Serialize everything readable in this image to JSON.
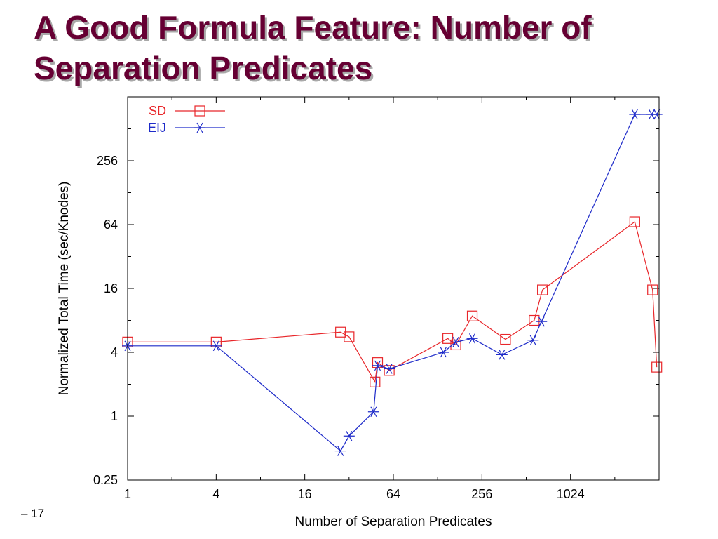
{
  "slide": {
    "title_line1": "A Good Formula Feature: Number of",
    "title_line2": "Separation Predicates",
    "page_number": "– 17"
  },
  "chart_data": {
    "type": "line",
    "x_scale": "log2",
    "y_scale": "log2",
    "xlim": [
      1,
      4096
    ],
    "ylim": [
      0.25,
      1024
    ],
    "xlabel": "Number of Separation Predicates",
    "ylabel": "Normalized Total Time (sec/Knodes)",
    "x_ticks": [
      {
        "value": 1,
        "label": "1"
      },
      {
        "value": 4,
        "label": "4"
      },
      {
        "value": 16,
        "label": "16"
      },
      {
        "value": 64,
        "label": "64"
      },
      {
        "value": 256,
        "label": "256"
      },
      {
        "value": 1024,
        "label": "1024"
      }
    ],
    "y_ticks": [
      {
        "value": 0.25,
        "label": "0.25"
      },
      {
        "value": 1,
        "label": "1"
      },
      {
        "value": 4,
        "label": "4"
      },
      {
        "value": 16,
        "label": "16"
      },
      {
        "value": 64,
        "label": "64"
      },
      {
        "value": 256,
        "label": "256"
      }
    ],
    "legend_position": "top-left",
    "series": [
      {
        "name": "SD",
        "color": "#e8262a",
        "marker": "square",
        "points": [
          [
            1,
            5
          ],
          [
            4,
            5
          ],
          [
            28,
            6.2
          ],
          [
            32,
            5.6
          ],
          [
            48,
            2.1
          ],
          [
            50,
            3.2
          ],
          [
            60,
            2.7
          ],
          [
            150,
            5.4
          ],
          [
            170,
            4.7
          ],
          [
            220,
            8.8
          ],
          [
            370,
            5.3
          ],
          [
            580,
            8
          ],
          [
            660,
            15.5
          ],
          [
            2800,
            68
          ],
          [
            3700,
            15.5
          ],
          [
            3950,
            2.9
          ]
        ]
      },
      {
        "name": "EIJ",
        "color": "#1e2bc9",
        "marker": "star",
        "points": [
          [
            1,
            4.6
          ],
          [
            4,
            4.6
          ],
          [
            28,
            0.47
          ],
          [
            32,
            0.65
          ],
          [
            47,
            1.1
          ],
          [
            50,
            3
          ],
          [
            60,
            2.8
          ],
          [
            140,
            4
          ],
          [
            170,
            5
          ],
          [
            220,
            5.4
          ],
          [
            350,
            3.8
          ],
          [
            570,
            5.2
          ],
          [
            650,
            7.8
          ],
          [
            2800,
            700
          ],
          [
            3650,
            700
          ],
          [
            3950,
            700
          ]
        ]
      }
    ]
  }
}
